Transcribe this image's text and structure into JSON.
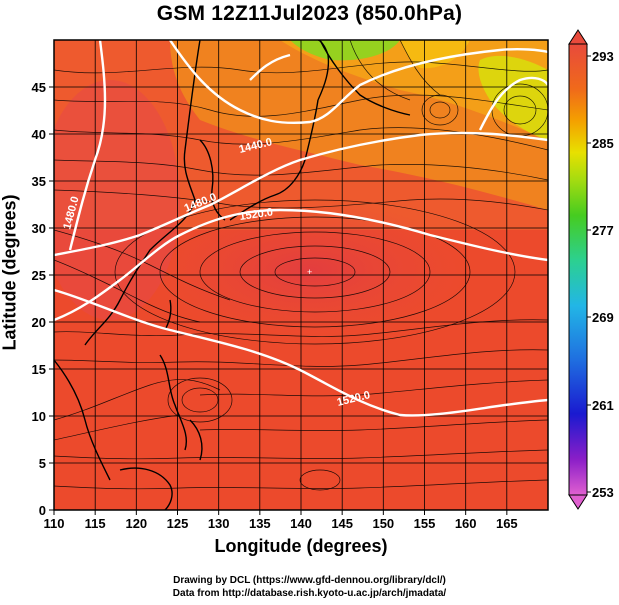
{
  "title": "GSM 12Z11Jul2023 (850.0hPa)",
  "axes": {
    "xlabel": "Longitude (degrees)",
    "ylabel": "Latitude  (degrees)",
    "xlim": [
      110,
      170
    ],
    "ylim": [
      0,
      50
    ],
    "xticks": [
      "110",
      "115",
      "120",
      "125",
      "130",
      "135",
      "140",
      "145",
      "150",
      "155",
      "160",
      "165"
    ],
    "yticks": [
      "0",
      "5",
      "10",
      "15",
      "20",
      "25",
      "30",
      "35",
      "40",
      "45"
    ]
  },
  "colorbar": {
    "range": [
      253,
      293
    ],
    "labels": [
      "293",
      "285",
      "277",
      "269",
      "261",
      "253"
    ],
    "colors": [
      "#d050c0",
      "#8a1ec8",
      "#1a1ad0",
      "#1f6fe0",
      "#22b6e6",
      "#2cd090",
      "#46cc20",
      "#a6dc10",
      "#e8e000",
      "#f4a000",
      "#f06a1a",
      "#e84a3c",
      "#e04848"
    ]
  },
  "contours": [
    {
      "label": "1440.0",
      "color": "#ffffff"
    },
    {
      "label": "1480.0",
      "color": "#ffffff"
    },
    {
      "label": "1480.0",
      "color": "#ffffff"
    },
    {
      "label": "1520.0",
      "color": "#ffffff"
    },
    {
      "label": "1520.0",
      "color": "#ffffff"
    }
  ],
  "credits": [
    "Drawing by DCL (https://www.gfd-dennou.org/library/dcl/)",
    "Data from http://database.rish.kyoto-u.ac.jp/arch/jmadata/"
  ]
}
